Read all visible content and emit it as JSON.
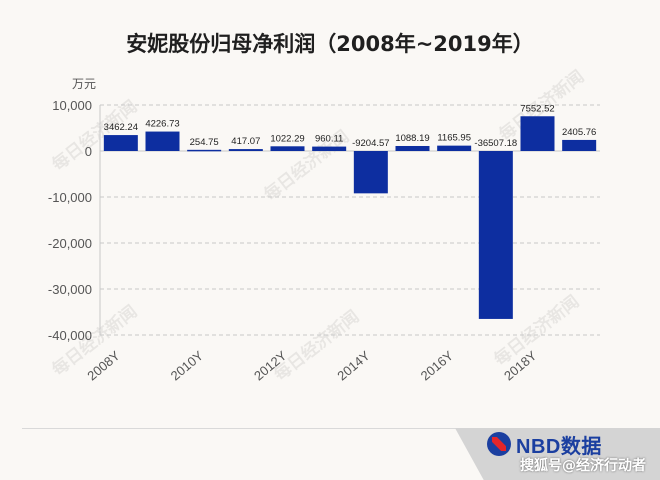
{
  "chart_data": {
    "type": "bar",
    "title": "安妮股份归母净利润（2008年~2019年）",
    "unit": "万元",
    "categories": [
      "2008",
      "2009",
      "2010",
      "2011",
      "2012",
      "2013",
      "2014",
      "2015",
      "2016",
      "2017",
      "2018",
      "2019"
    ],
    "values": [
      3462.24,
      4226.73,
      254.75,
      417.07,
      1022.29,
      960.11,
      -9204.57,
      1088.19,
      1165.95,
      -36507.18,
      7552.52,
      2405.76
    ],
    "value_labels": [
      "3462.24",
      "4226.73",
      "254.75",
      "417.07",
      "1022.29",
      "960.11",
      "-9204.57",
      "1088.19",
      "1165.95",
      "-36507.18",
      "7552.52",
      "2405.76"
    ],
    "x_tick_labels": [
      {
        "label": "2008Y",
        "index": 0
      },
      {
        "label": "2010Y",
        "index": 2
      },
      {
        "label": "2012Y",
        "index": 4
      },
      {
        "label": "2014Y",
        "index": 6
      },
      {
        "label": "2016Y",
        "index": 8
      },
      {
        "label": "2018Y",
        "index": 10
      }
    ],
    "y_ticks": [
      10000,
      0,
      -10000,
      -20000,
      -30000,
      -40000
    ],
    "y_tick_labels": [
      "10,000",
      "0",
      "-10,000",
      "-20,000",
      "-30,000",
      "-40,000"
    ],
    "ylim": [
      -40000,
      10000
    ],
    "grid": true,
    "legend": "none",
    "bar_color": "#0d2ea0"
  },
  "watermark": "每日经济新闻",
  "brand": {
    "name": "NBD数据"
  },
  "credit": "搜狐号@经济行动者"
}
